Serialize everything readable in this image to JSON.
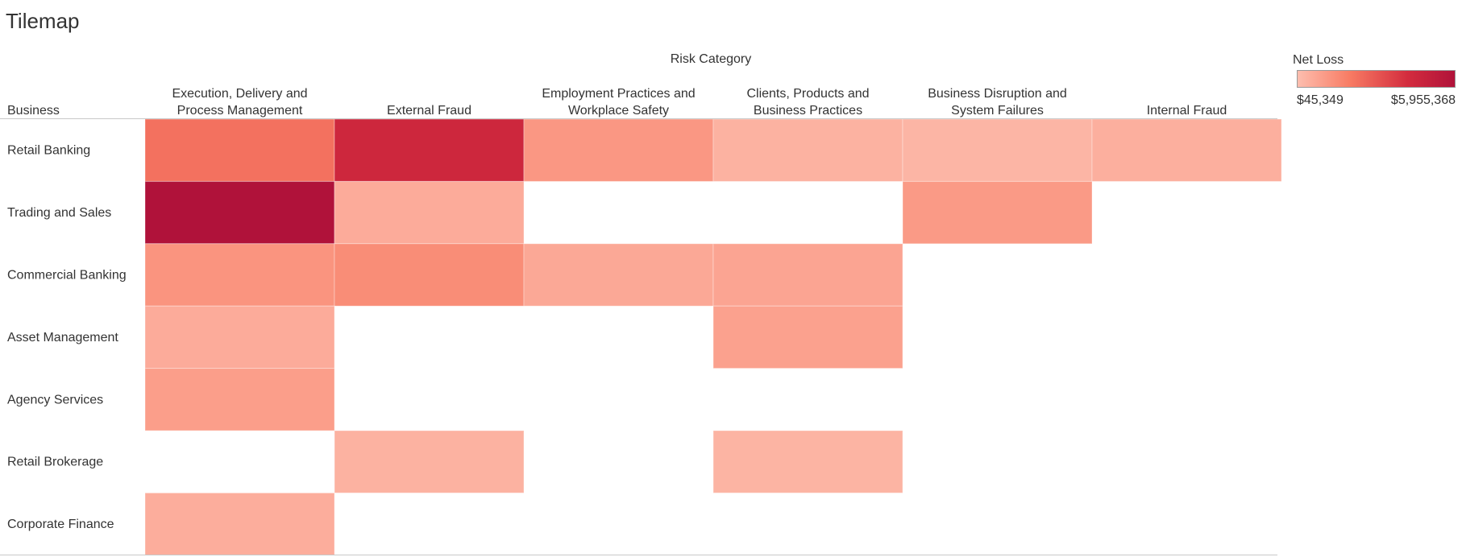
{
  "page_title": "Tilemap",
  "chart_data": {
    "type": "heatmap",
    "title": "Tilemap",
    "xlabel": "Risk Category",
    "ylabel": "Business",
    "columns": [
      [
        "Execution, Delivery and",
        "Process Management"
      ],
      [
        "External Fraud"
      ],
      [
        "Employment Practices and",
        "Workplace Safety"
      ],
      [
        "Clients, Products and",
        "Business Practices"
      ],
      [
        "Business Disruption and",
        "System Failures"
      ],
      [
        "Internal Fraud"
      ]
    ],
    "rows": [
      "Retail Banking",
      "Trading and Sales",
      "Commercial Banking",
      "Asset Management",
      "Agency Services",
      "Retail Brokerage",
      "Corporate Finance"
    ],
    "values": [
      [
        2300000,
        4500000,
        1200000,
        400000,
        300000,
        500000
      ],
      [
        5955368,
        600000,
        null,
        null,
        1100000,
        null
      ],
      [
        1300000,
        1500000,
        700000,
        800000,
        null,
        null
      ],
      [
        600000,
        null,
        null,
        900000,
        null,
        null
      ],
      [
        1000000,
        null,
        null,
        null,
        null,
        null
      ],
      [
        null,
        400000,
        null,
        350000,
        null,
        null
      ],
      [
        550000,
        null,
        null,
        null,
        null,
        null
      ]
    ],
    "legend": {
      "title": "Net Loss",
      "min": 45349,
      "max": 5955368,
      "min_label": "$45,349",
      "max_label": "$5,955,368",
      "colors": [
        "#fdbeaf",
        "#f87c64",
        "#d32c3e",
        "#b0123a"
      ],
      "placement": "top-right"
    }
  }
}
